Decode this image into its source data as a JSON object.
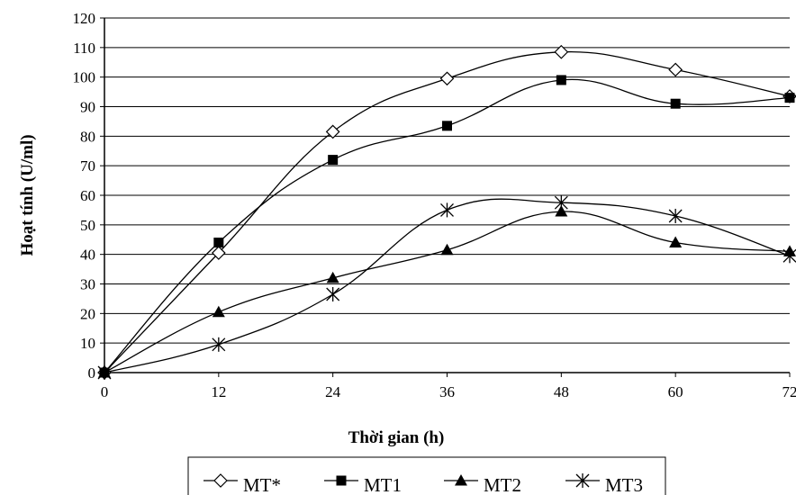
{
  "chart_data": {
    "type": "line",
    "xlabel": "Thời gian (h)",
    "ylabel": "Hoạt tính (U/ml)",
    "x": [
      0,
      12,
      24,
      36,
      48,
      60,
      72
    ],
    "xlim": [
      0,
      72
    ],
    "ylim": [
      0,
      120
    ],
    "y_ticks": [
      "0",
      "10",
      "20",
      "30",
      "40",
      "50",
      "60",
      "70",
      "80",
      "90",
      "100",
      "110",
      "120"
    ],
    "x_ticks": [
      "0",
      "12",
      "24",
      "36",
      "48",
      "60",
      "72"
    ],
    "grid": "horizontal",
    "legend_position": "bottom",
    "series": [
      {
        "name": "MT*",
        "marker": "open-diamond",
        "values": [
          0,
          40.5,
          81.5,
          99.5,
          108.5,
          102.5,
          93.5
        ]
      },
      {
        "name": "MT1",
        "marker": "filled-square",
        "values": [
          0,
          44,
          72,
          83.5,
          99,
          91,
          93
        ]
      },
      {
        "name": "MT2",
        "marker": "filled-triangle",
        "values": [
          0,
          20.5,
          32,
          41.5,
          54.5,
          44,
          41
        ]
      },
      {
        "name": "MT3",
        "marker": "asterisk",
        "values": [
          0,
          9.5,
          26.5,
          55,
          57.5,
          53,
          39.5
        ]
      }
    ]
  }
}
